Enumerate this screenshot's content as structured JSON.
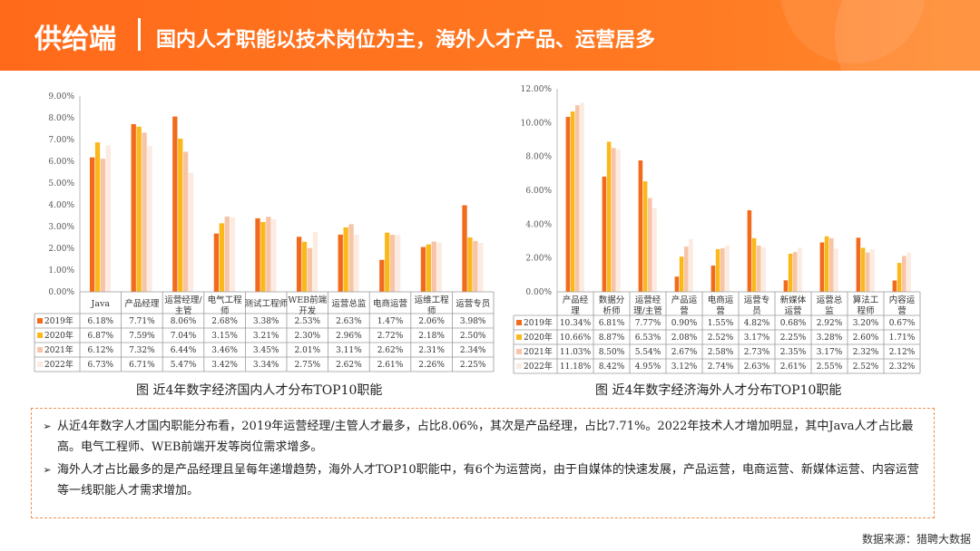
{
  "header": {
    "tag": "供给端",
    "title": "国内人才职能以技术岗位为主，海外人才产品、运营居多"
  },
  "colors": {
    "y2019": "#f26b1d",
    "y2020": "#fbb81b",
    "y2021": "#f7c4a8",
    "y2022": "#fcebe0",
    "accent": "#ff6a1a"
  },
  "chart_data": [
    {
      "type": "bar",
      "title": "图 近4年数字经济国内人才分布TOP10职能",
      "categories": [
        "Java",
        "产品经理",
        "运营经理/主管",
        "电气工程师",
        "测试工程师",
        "WEB前端开发",
        "运营总监",
        "电商运营",
        "运维工程师",
        "运营专员"
      ],
      "category_lines": [
        [
          "Java"
        ],
        [
          "产品经理"
        ],
        [
          "运营经理/",
          "主管"
        ],
        [
          "电气工程",
          "师"
        ],
        [
          "测试工程师"
        ],
        [
          "WEB前端",
          "开发"
        ],
        [
          "运营总监"
        ],
        [
          "电商运营"
        ],
        [
          "运维工程",
          "师"
        ],
        [
          "运营专员"
        ]
      ],
      "ylim": [
        0,
        9
      ],
      "y_ticks": [
        "0.00%",
        "1.00%",
        "2.00%",
        "3.00%",
        "4.00%",
        "5.00%",
        "6.00%",
        "7.00%",
        "8.00%",
        "9.00%"
      ],
      "series": [
        {
          "name": "2019年",
          "values": [
            6.18,
            7.71,
            8.06,
            2.68,
            3.38,
            2.53,
            2.63,
            1.47,
            2.06,
            3.98
          ],
          "labels": [
            "6.18%",
            "7.71%",
            "8.06%",
            "2.68%",
            "3.38%",
            "2.53%",
            "2.63%",
            "1.47%",
            "2.06%",
            "3.98%"
          ]
        },
        {
          "name": "2020年",
          "values": [
            6.87,
            7.59,
            7.04,
            3.15,
            3.21,
            2.3,
            2.96,
            2.72,
            2.18,
            2.5
          ],
          "labels": [
            "6.87%",
            "7.59%",
            "7.04%",
            "3.15%",
            "3.21%",
            "2.30%",
            "2.96%",
            "2.72%",
            "2.18%",
            "2.50%"
          ]
        },
        {
          "name": "2021年",
          "values": [
            6.12,
            7.32,
            6.44,
            3.46,
            3.45,
            2.01,
            3.11,
            2.62,
            2.31,
            2.34
          ],
          "labels": [
            "6.12%",
            "7.32%",
            "6.44%",
            "3.46%",
            "3.45%",
            "2.01%",
            "3.11%",
            "2.62%",
            "2.31%",
            "2.34%"
          ]
        },
        {
          "name": "2022年",
          "values": [
            6.73,
            6.71,
            5.47,
            3.42,
            3.34,
            2.75,
            2.62,
            2.61,
            2.26,
            2.25
          ],
          "labels": [
            "6.73%",
            "6.71%",
            "5.47%",
            "3.42%",
            "3.34%",
            "2.75%",
            "2.62%",
            "2.61%",
            "2.26%",
            "2.25%"
          ]
        }
      ]
    },
    {
      "type": "bar",
      "title": "图 近4年数字经济海外人才分布TOP10职能",
      "categories": [
        "产品经理",
        "数据分析师",
        "运营经理/主管",
        "产品运营",
        "电商运营",
        "运营专员",
        "新媒体运营",
        "运营总监",
        "算法工程师",
        "内容运营"
      ],
      "category_lines": [
        [
          "产品经",
          "理"
        ],
        [
          "数据分",
          "析师"
        ],
        [
          "运营经",
          "理/主管"
        ],
        [
          "产品运",
          "营"
        ],
        [
          "电商运",
          "营"
        ],
        [
          "运营专",
          "员"
        ],
        [
          "新媒体",
          "运营"
        ],
        [
          "运营总",
          "监"
        ],
        [
          "算法工",
          "程师"
        ],
        [
          "内容运",
          "营"
        ]
      ],
      "ylim": [
        0,
        12
      ],
      "y_ticks": [
        "0.00%",
        "2.00%",
        "4.00%",
        "6.00%",
        "8.00%",
        "10.00%",
        "12.00%"
      ],
      "series": [
        {
          "name": "2019年",
          "values": [
            10.34,
            6.81,
            7.77,
            0.9,
            1.55,
            4.82,
            0.68,
            2.92,
            3.2,
            0.67
          ],
          "labels": [
            "10.34%",
            "6.81%",
            "7.77%",
            "0.90%",
            "1.55%",
            "4.82%",
            "0.68%",
            "2.92%",
            "3.20%",
            "0.67%"
          ]
        },
        {
          "name": "2020年",
          "values": [
            10.66,
            8.87,
            6.53,
            2.08,
            2.52,
            3.17,
            2.25,
            3.28,
            2.6,
            1.71
          ],
          "labels": [
            "10.66%",
            "8.87%",
            "6.53%",
            "2.08%",
            "2.52%",
            "3.17%",
            "2.25%",
            "3.28%",
            "2.60%",
            "1.71%"
          ]
        },
        {
          "name": "2021年",
          "values": [
            11.03,
            8.5,
            5.54,
            2.67,
            2.58,
            2.73,
            2.35,
            3.17,
            2.32,
            2.12
          ],
          "labels": [
            "11.03%",
            "8.50%",
            "5.54%",
            "2.67%",
            "2.58%",
            "2.73%",
            "2.35%",
            "3.17%",
            "2.32%",
            "2.12%"
          ]
        },
        {
          "name": "2022年",
          "values": [
            11.18,
            8.42,
            4.95,
            3.12,
            2.74,
            2.63,
            2.61,
            2.55,
            2.52,
            2.32
          ],
          "labels": [
            "11.18%",
            "8.42%",
            "4.95%",
            "3.12%",
            "2.74%",
            "2.63%",
            "2.61%",
            "2.55%",
            "2.52%",
            "2.32%"
          ]
        }
      ]
    }
  ],
  "summary": {
    "bullet": "➢",
    "p1": "从近4年数字人才国内职能分布看，2019年运营经理/主管人才最多，占比8.06%，其次是产品经理，占比7.71%。2022年技术人才增加明显，其中Java人才占比最高。电气工程师、WEB前端开发等岗位需求增多。",
    "p2": "海外人才占比最多的是产品经理且呈每年递增趋势，海外人才TOP10职能中，有6个为运营岗，由于自媒体的快速发展，产品运营，电商运营、新媒体运营、内容运营等一线职能人才需求增加。"
  },
  "source": "数据来源：猎聘大数据"
}
